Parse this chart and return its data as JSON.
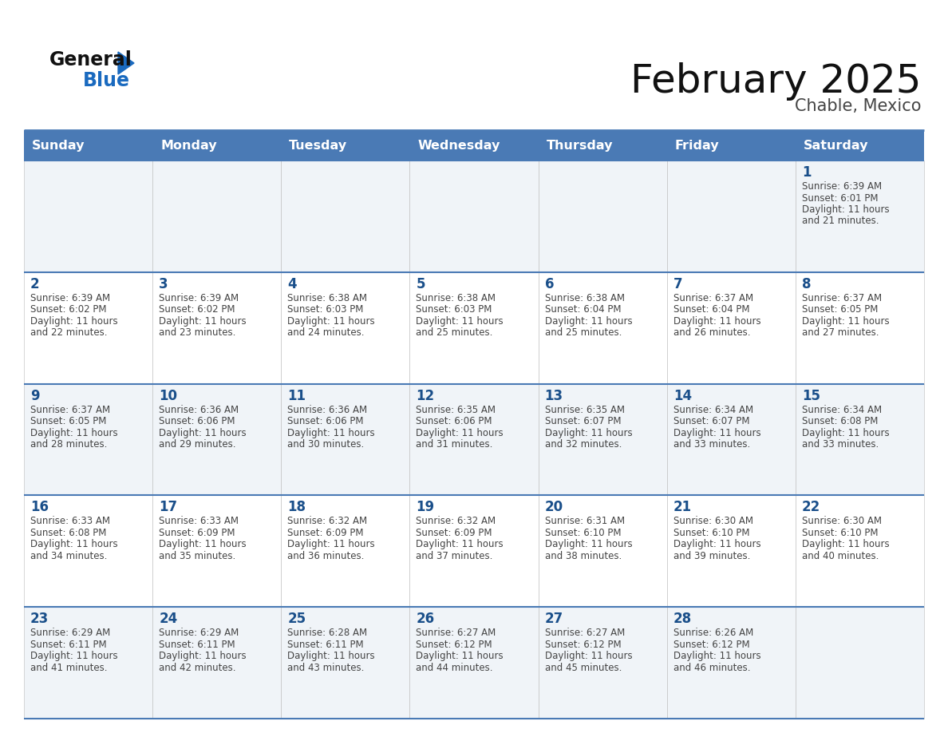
{
  "title": "February 2025",
  "subtitle": "Chable, Mexico",
  "days_of_week": [
    "Sunday",
    "Monday",
    "Tuesday",
    "Wednesday",
    "Thursday",
    "Friday",
    "Saturday"
  ],
  "header_bg": "#4a7ab5",
  "header_text": "#ffffff",
  "cell_bg_odd": "#f0f4f8",
  "cell_bg_even": "#ffffff",
  "day_num_color": "#1a4f8a",
  "cell_text_color": "#444444",
  "title_color": "#111111",
  "subtitle_color": "#444444",
  "logo_general_color": "#111111",
  "logo_blue_color": "#1a6abf",
  "row_line_color": "#4a7ab5",
  "days": [
    {
      "date": 1,
      "col": 6,
      "row": 0,
      "sunrise": "6:39 AM",
      "sunset": "6:01 PM",
      "dl1": "Daylight: 11 hours",
      "dl2": "and 21 minutes."
    },
    {
      "date": 2,
      "col": 0,
      "row": 1,
      "sunrise": "6:39 AM",
      "sunset": "6:02 PM",
      "dl1": "Daylight: 11 hours",
      "dl2": "and 22 minutes."
    },
    {
      "date": 3,
      "col": 1,
      "row": 1,
      "sunrise": "6:39 AM",
      "sunset": "6:02 PM",
      "dl1": "Daylight: 11 hours",
      "dl2": "and 23 minutes."
    },
    {
      "date": 4,
      "col": 2,
      "row": 1,
      "sunrise": "6:38 AM",
      "sunset": "6:03 PM",
      "dl1": "Daylight: 11 hours",
      "dl2": "and 24 minutes."
    },
    {
      "date": 5,
      "col": 3,
      "row": 1,
      "sunrise": "6:38 AM",
      "sunset": "6:03 PM",
      "dl1": "Daylight: 11 hours",
      "dl2": "and 25 minutes."
    },
    {
      "date": 6,
      "col": 4,
      "row": 1,
      "sunrise": "6:38 AM",
      "sunset": "6:04 PM",
      "dl1": "Daylight: 11 hours",
      "dl2": "and 25 minutes."
    },
    {
      "date": 7,
      "col": 5,
      "row": 1,
      "sunrise": "6:37 AM",
      "sunset": "6:04 PM",
      "dl1": "Daylight: 11 hours",
      "dl2": "and 26 minutes."
    },
    {
      "date": 8,
      "col": 6,
      "row": 1,
      "sunrise": "6:37 AM",
      "sunset": "6:05 PM",
      "dl1": "Daylight: 11 hours",
      "dl2": "and 27 minutes."
    },
    {
      "date": 9,
      "col": 0,
      "row": 2,
      "sunrise": "6:37 AM",
      "sunset": "6:05 PM",
      "dl1": "Daylight: 11 hours",
      "dl2": "and 28 minutes."
    },
    {
      "date": 10,
      "col": 1,
      "row": 2,
      "sunrise": "6:36 AM",
      "sunset": "6:06 PM",
      "dl1": "Daylight: 11 hours",
      "dl2": "and 29 minutes."
    },
    {
      "date": 11,
      "col": 2,
      "row": 2,
      "sunrise": "6:36 AM",
      "sunset": "6:06 PM",
      "dl1": "Daylight: 11 hours",
      "dl2": "and 30 minutes."
    },
    {
      "date": 12,
      "col": 3,
      "row": 2,
      "sunrise": "6:35 AM",
      "sunset": "6:06 PM",
      "dl1": "Daylight: 11 hours",
      "dl2": "and 31 minutes."
    },
    {
      "date": 13,
      "col": 4,
      "row": 2,
      "sunrise": "6:35 AM",
      "sunset": "6:07 PM",
      "dl1": "Daylight: 11 hours",
      "dl2": "and 32 minutes."
    },
    {
      "date": 14,
      "col": 5,
      "row": 2,
      "sunrise": "6:34 AM",
      "sunset": "6:07 PM",
      "dl1": "Daylight: 11 hours",
      "dl2": "and 33 minutes."
    },
    {
      "date": 15,
      "col": 6,
      "row": 2,
      "sunrise": "6:34 AM",
      "sunset": "6:08 PM",
      "dl1": "Daylight: 11 hours",
      "dl2": "and 33 minutes."
    },
    {
      "date": 16,
      "col": 0,
      "row": 3,
      "sunrise": "6:33 AM",
      "sunset": "6:08 PM",
      "dl1": "Daylight: 11 hours",
      "dl2": "and 34 minutes."
    },
    {
      "date": 17,
      "col": 1,
      "row": 3,
      "sunrise": "6:33 AM",
      "sunset": "6:09 PM",
      "dl1": "Daylight: 11 hours",
      "dl2": "and 35 minutes."
    },
    {
      "date": 18,
      "col": 2,
      "row": 3,
      "sunrise": "6:32 AM",
      "sunset": "6:09 PM",
      "dl1": "Daylight: 11 hours",
      "dl2": "and 36 minutes."
    },
    {
      "date": 19,
      "col": 3,
      "row": 3,
      "sunrise": "6:32 AM",
      "sunset": "6:09 PM",
      "dl1": "Daylight: 11 hours",
      "dl2": "and 37 minutes."
    },
    {
      "date": 20,
      "col": 4,
      "row": 3,
      "sunrise": "6:31 AM",
      "sunset": "6:10 PM",
      "dl1": "Daylight: 11 hours",
      "dl2": "and 38 minutes."
    },
    {
      "date": 21,
      "col": 5,
      "row": 3,
      "sunrise": "6:30 AM",
      "sunset": "6:10 PM",
      "dl1": "Daylight: 11 hours",
      "dl2": "and 39 minutes."
    },
    {
      "date": 22,
      "col": 6,
      "row": 3,
      "sunrise": "6:30 AM",
      "sunset": "6:10 PM",
      "dl1": "Daylight: 11 hours",
      "dl2": "and 40 minutes."
    },
    {
      "date": 23,
      "col": 0,
      "row": 4,
      "sunrise": "6:29 AM",
      "sunset": "6:11 PM",
      "dl1": "Daylight: 11 hours",
      "dl2": "and 41 minutes."
    },
    {
      "date": 24,
      "col": 1,
      "row": 4,
      "sunrise": "6:29 AM",
      "sunset": "6:11 PM",
      "dl1": "Daylight: 11 hours",
      "dl2": "and 42 minutes."
    },
    {
      "date": 25,
      "col": 2,
      "row": 4,
      "sunrise": "6:28 AM",
      "sunset": "6:11 PM",
      "dl1": "Daylight: 11 hours",
      "dl2": "and 43 minutes."
    },
    {
      "date": 26,
      "col": 3,
      "row": 4,
      "sunrise": "6:27 AM",
      "sunset": "6:12 PM",
      "dl1": "Daylight: 11 hours",
      "dl2": "and 44 minutes."
    },
    {
      "date": 27,
      "col": 4,
      "row": 4,
      "sunrise": "6:27 AM",
      "sunset": "6:12 PM",
      "dl1": "Daylight: 11 hours",
      "dl2": "and 45 minutes."
    },
    {
      "date": 28,
      "col": 5,
      "row": 4,
      "sunrise": "6:26 AM",
      "sunset": "6:12 PM",
      "dl1": "Daylight: 11 hours",
      "dl2": "and 46 minutes."
    }
  ]
}
